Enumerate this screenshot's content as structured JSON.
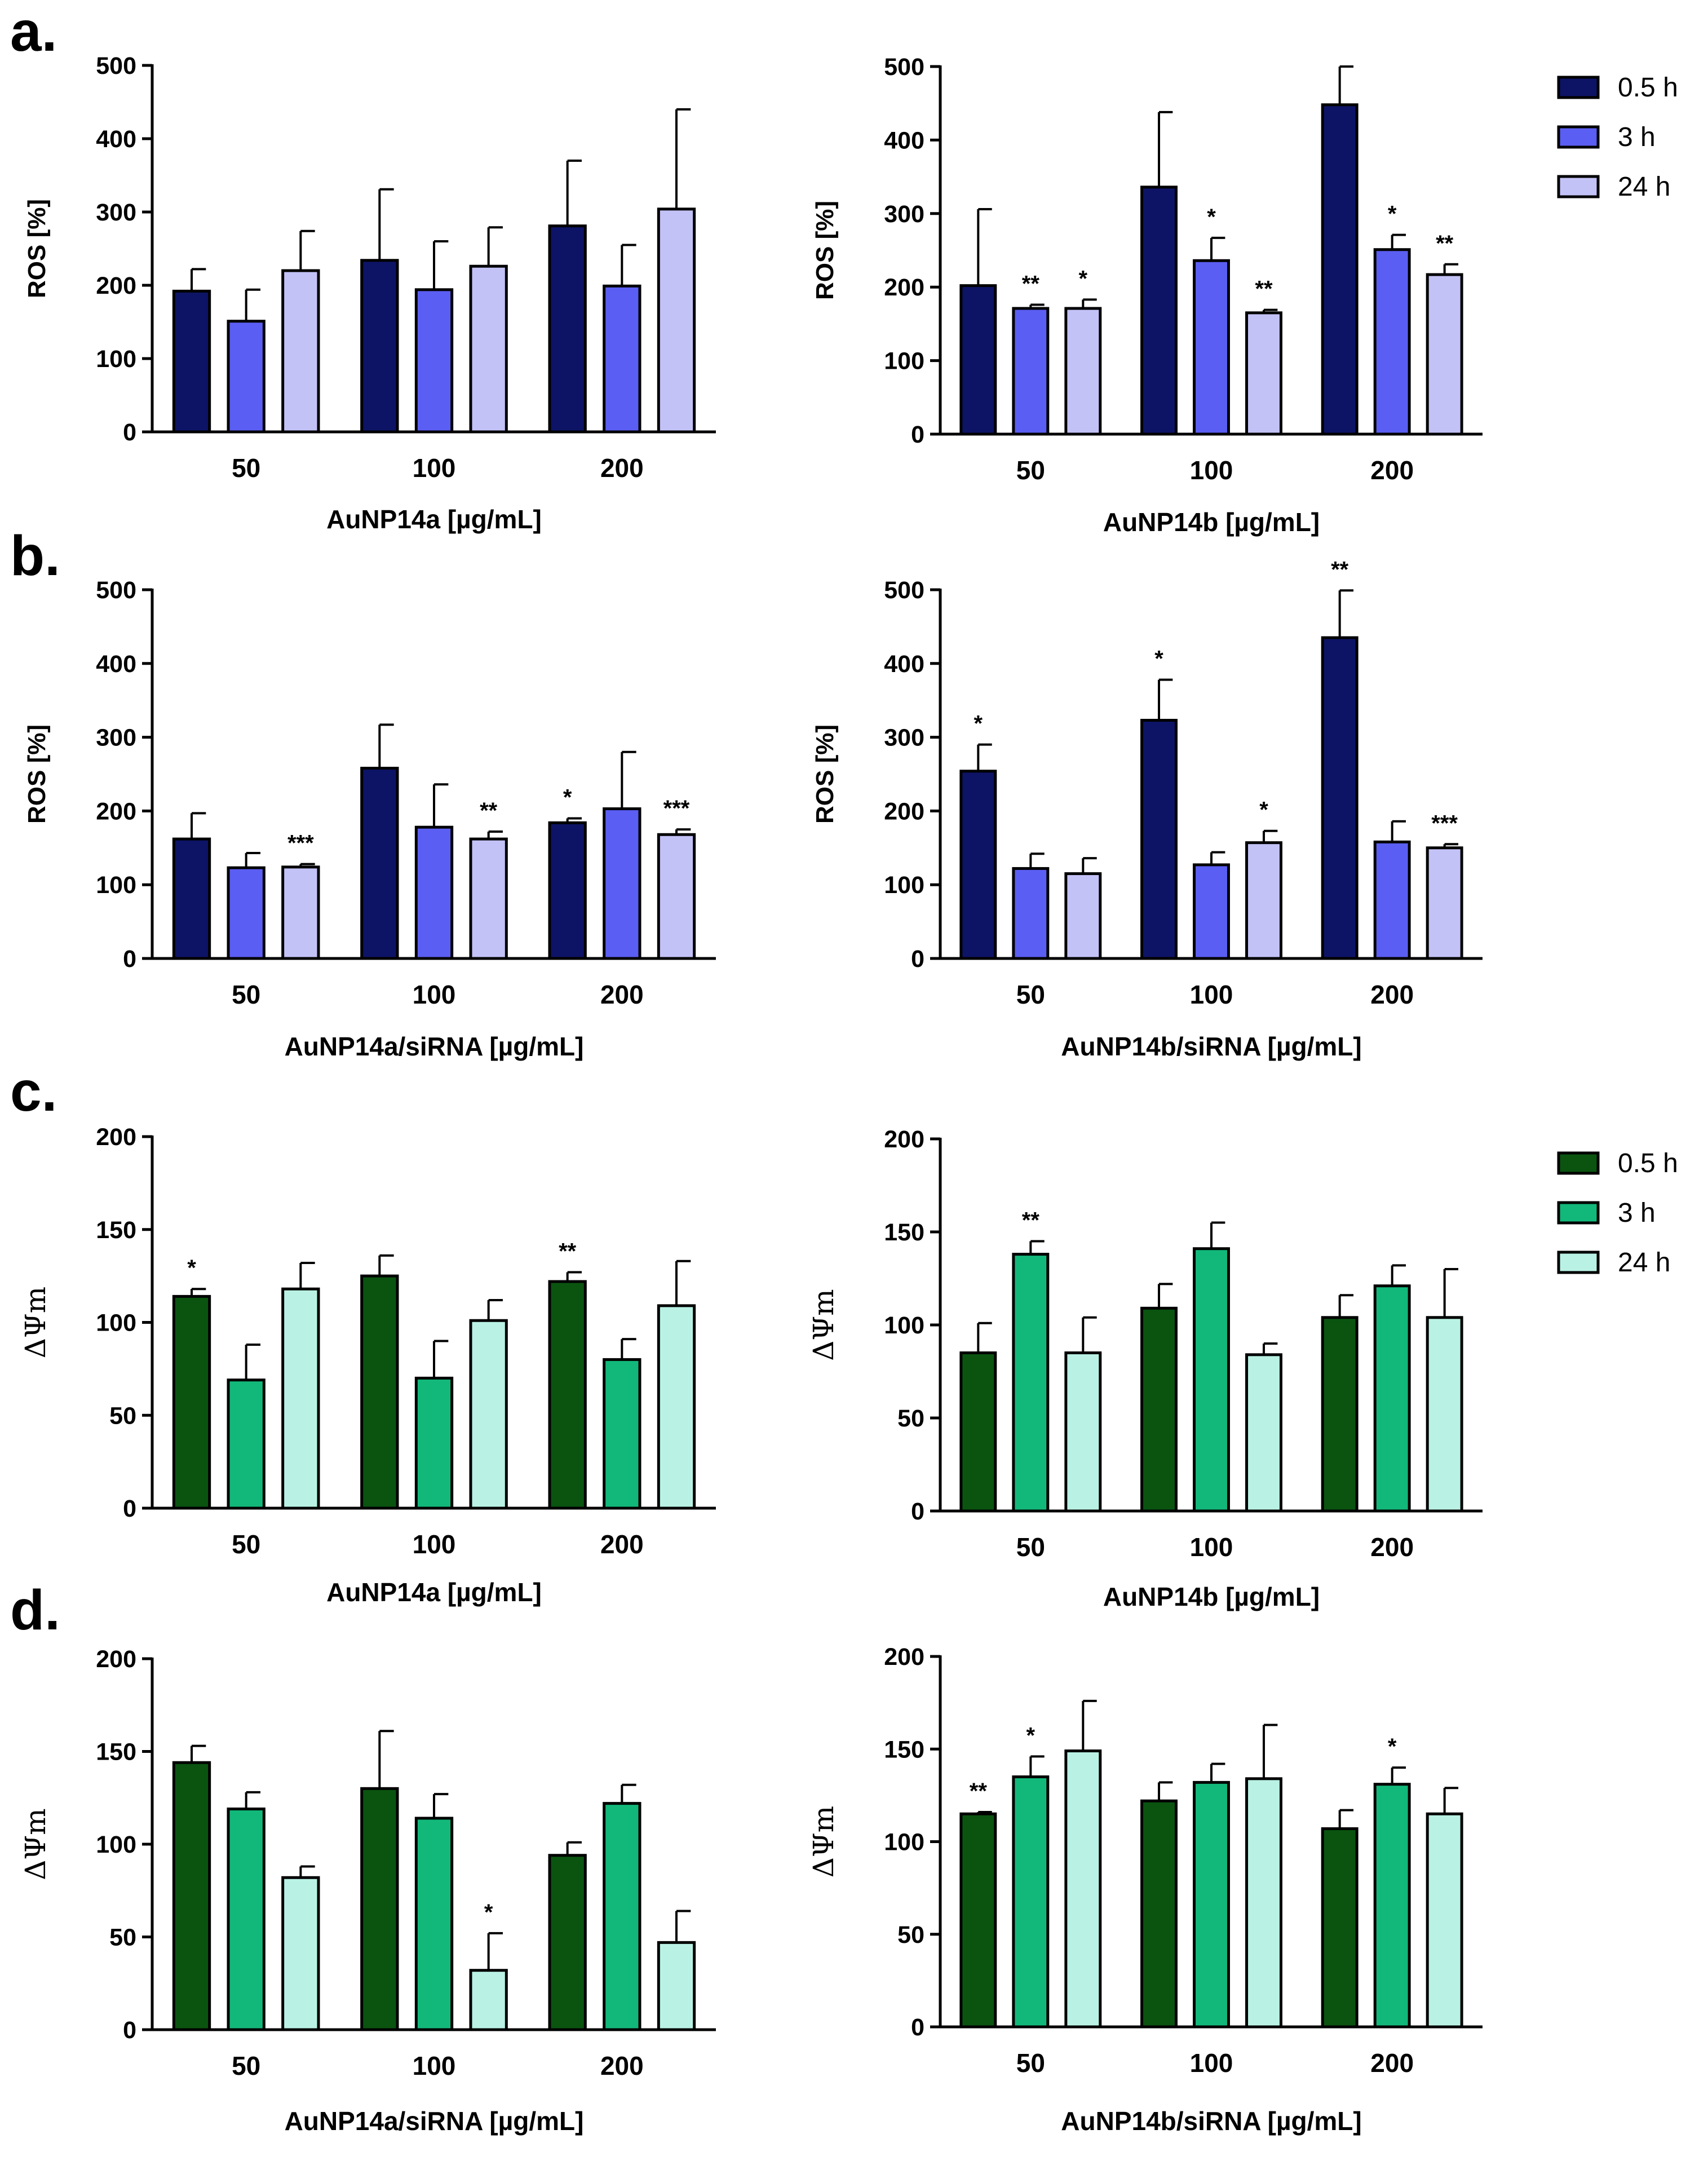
{
  "panels": [
    {
      "letter": "a."
    },
    {
      "letter": "b."
    },
    {
      "letter": "c."
    },
    {
      "letter": "d."
    }
  ],
  "legends": [
    {
      "entries": [
        "0.5 h",
        "3 h",
        "24 h"
      ],
      "colors": [
        "#0d1466",
        "#5b5ef2",
        "#c3c2f7"
      ]
    },
    {
      "entries": [
        "0.5 h",
        "3 h",
        "24 h"
      ],
      "colors": [
        "#0a5410",
        "#12b87a",
        "#b9f2e4"
      ]
    }
  ],
  "chart_data": [
    {
      "id": "a-left",
      "type": "bar",
      "panel": "a.",
      "categories": [
        "50",
        "100",
        "200"
      ],
      "series": [
        {
          "name": "0.5 h",
          "values": [
            192,
            234,
            281
          ],
          "errors": [
            30,
            97,
            89
          ],
          "sig": [
            "",
            "",
            ""
          ]
        },
        {
          "name": "3 h",
          "values": [
            151,
            194,
            199
          ],
          "errors": [
            43,
            66,
            56
          ],
          "sig": [
            "",
            "",
            ""
          ]
        },
        {
          "name": "24 h",
          "values": [
            220,
            226,
            304
          ],
          "errors": [
            54,
            53,
            136
          ],
          "sig": [
            "",
            "",
            ""
          ]
        }
      ],
      "xlabel": "AuNP14a [µg/mL]",
      "ylabel": "ROS [%]",
      "ylim": [
        0,
        500
      ],
      "yticks": [
        0,
        100,
        200,
        300,
        400,
        500
      ],
      "colors": [
        "#0d1466",
        "#5b5ef2",
        "#c3c2f7"
      ]
    },
    {
      "id": "a-right",
      "type": "bar",
      "panel": "a.",
      "categories": [
        "50",
        "100",
        "200"
      ],
      "series": [
        {
          "name": "0.5 h",
          "values": [
            202,
            336,
            448
          ],
          "errors": [
            104,
            102,
            52
          ],
          "sig": [
            "",
            "",
            ""
          ]
        },
        {
          "name": "3 h",
          "values": [
            171,
            236,
            251
          ],
          "errors": [
            5,
            31,
            20
          ],
          "sig": [
            "**",
            "*",
            "*"
          ]
        },
        {
          "name": "24 h",
          "values": [
            171,
            165,
            217
          ],
          "errors": [
            12,
            4,
            14
          ],
          "sig": [
            "*",
            "**",
            "**"
          ]
        }
      ],
      "xlabel": "AuNP14b [µg/mL]",
      "ylabel": "ROS [%]",
      "ylim": [
        0,
        500
      ],
      "yticks": [
        0,
        100,
        200,
        300,
        400,
        500
      ],
      "colors": [
        "#0d1466",
        "#5b5ef2",
        "#c3c2f7"
      ]
    },
    {
      "id": "b-left",
      "type": "bar",
      "panel": "b.",
      "categories": [
        "50",
        "100",
        "200"
      ],
      "series": [
        {
          "name": "0.5 h",
          "values": [
            162,
            258,
            184
          ],
          "errors": [
            35,
            59,
            6
          ],
          "sig": [
            "",
            "",
            "*"
          ]
        },
        {
          "name": "3 h",
          "values": [
            123,
            178,
            203
          ],
          "errors": [
            20,
            58,
            77
          ],
          "sig": [
            "",
            "",
            ""
          ]
        },
        {
          "name": "24 h",
          "values": [
            124,
            162,
            168
          ],
          "errors": [
            4,
            10,
            7
          ],
          "sig": [
            "***",
            "**",
            "***"
          ]
        }
      ],
      "xlabel": "AuNP14a/siRNA [µg/mL]",
      "ylabel": "ROS [%]",
      "ylim": [
        0,
        500
      ],
      "yticks": [
        0,
        100,
        200,
        300,
        400,
        500
      ],
      "colors": [
        "#0d1466",
        "#5b5ef2",
        "#c3c2f7"
      ]
    },
    {
      "id": "b-right",
      "type": "bar",
      "panel": "b.",
      "categories": [
        "50",
        "100",
        "200"
      ],
      "series": [
        {
          "name": "0.5 h",
          "values": [
            254,
            323,
            435
          ],
          "errors": [
            36,
            55,
            64
          ],
          "sig": [
            "*",
            "*",
            "**"
          ]
        },
        {
          "name": "3 h",
          "values": [
            122,
            127,
            158
          ],
          "errors": [
            20,
            17,
            28
          ],
          "sig": [
            "",
            "",
            ""
          ]
        },
        {
          "name": "24 h",
          "values": [
            115,
            157,
            150
          ],
          "errors": [
            21,
            16,
            5
          ],
          "sig": [
            "",
            "*",
            "***"
          ]
        }
      ],
      "xlabel": "AuNP14b/siRNA [µg/mL]",
      "ylabel": "ROS [%]",
      "ylim": [
        0,
        500
      ],
      "yticks": [
        0,
        100,
        200,
        300,
        400,
        500
      ],
      "colors": [
        "#0d1466",
        "#5b5ef2",
        "#c3c2f7"
      ]
    },
    {
      "id": "c-left",
      "type": "bar",
      "panel": "c.",
      "categories": [
        "50",
        "100",
        "200"
      ],
      "series": [
        {
          "name": "0.5 h",
          "values": [
            114,
            125,
            122
          ],
          "errors": [
            4,
            11,
            5
          ],
          "sig": [
            "*",
            "",
            "**"
          ]
        },
        {
          "name": "3 h",
          "values": [
            69,
            70,
            80
          ],
          "errors": [
            19,
            20,
            11
          ],
          "sig": [
            "",
            "",
            ""
          ]
        },
        {
          "name": "24 h",
          "values": [
            118,
            101,
            109
          ],
          "errors": [
            14,
            11,
            24
          ],
          "sig": [
            "",
            "",
            ""
          ]
        }
      ],
      "xlabel": "AuNP14a [µg/mL]",
      "ylabel": "ΔΨm",
      "ylim": [
        0,
        200
      ],
      "yticks": [
        0,
        50,
        100,
        150,
        200
      ],
      "colors": [
        "#0a5410",
        "#12b87a",
        "#b9f2e4"
      ]
    },
    {
      "id": "c-right",
      "type": "bar",
      "panel": "c.",
      "categories": [
        "50",
        "100",
        "200"
      ],
      "series": [
        {
          "name": "0.5 h",
          "values": [
            85,
            109,
            104
          ],
          "errors": [
            16,
            13,
            12
          ],
          "sig": [
            "",
            "",
            ""
          ]
        },
        {
          "name": "3 h",
          "values": [
            138,
            141,
            121
          ],
          "errors": [
            7,
            14,
            11
          ],
          "sig": [
            "**",
            "",
            ""
          ]
        },
        {
          "name": "24 h",
          "values": [
            85,
            84,
            104
          ],
          "errors": [
            19,
            6,
            26
          ],
          "sig": [
            "",
            "",
            ""
          ]
        }
      ],
      "xlabel": "AuNP14b [µg/mL]",
      "ylabel": "ΔΨm",
      "ylim": [
        0,
        200
      ],
      "yticks": [
        0,
        50,
        100,
        150,
        200
      ],
      "colors": [
        "#0a5410",
        "#12b87a",
        "#b9f2e4"
      ]
    },
    {
      "id": "d-left",
      "type": "bar",
      "panel": "d.",
      "categories": [
        "50",
        "100",
        "200"
      ],
      "series": [
        {
          "name": "0.5 h",
          "values": [
            144,
            130,
            94
          ],
          "errors": [
            9,
            31,
            7
          ],
          "sig": [
            "",
            "",
            ""
          ]
        },
        {
          "name": "3 h",
          "values": [
            119,
            114,
            122
          ],
          "errors": [
            9,
            13,
            10
          ],
          "sig": [
            "",
            "",
            ""
          ]
        },
        {
          "name": "24 h",
          "values": [
            82,
            32,
            47
          ],
          "errors": [
            6,
            20,
            17
          ],
          "sig": [
            "",
            "*",
            ""
          ]
        }
      ],
      "xlabel": "AuNP14a/siRNA [µg/mL]",
      "ylabel": "ΔΨm",
      "ylim": [
        0,
        200
      ],
      "yticks": [
        0,
        50,
        100,
        150,
        200
      ],
      "colors": [
        "#0a5410",
        "#12b87a",
        "#b9f2e4"
      ]
    },
    {
      "id": "d-right",
      "type": "bar",
      "panel": "d.",
      "categories": [
        "50",
        "100",
        "200"
      ],
      "series": [
        {
          "name": "0.5 h",
          "values": [
            115,
            122,
            107
          ],
          "errors": [
            1,
            10,
            10
          ],
          "sig": [
            "**",
            "",
            ""
          ]
        },
        {
          "name": "3 h",
          "values": [
            135,
            132,
            131
          ],
          "errors": [
            11,
            10,
            9
          ],
          "sig": [
            "*",
            "",
            "*"
          ]
        },
        {
          "name": "24 h",
          "values": [
            149,
            134,
            115
          ],
          "errors": [
            27,
            29,
            14
          ],
          "sig": [
            "",
            "",
            ""
          ]
        }
      ],
      "xlabel": "AuNP14b/siRNA [µg/mL]",
      "ylabel": "ΔΨm",
      "ylim": [
        0,
        200
      ],
      "yticks": [
        0,
        50,
        100,
        150,
        200
      ],
      "colors": [
        "#0a5410",
        "#12b87a",
        "#b9f2e4"
      ]
    }
  ]
}
